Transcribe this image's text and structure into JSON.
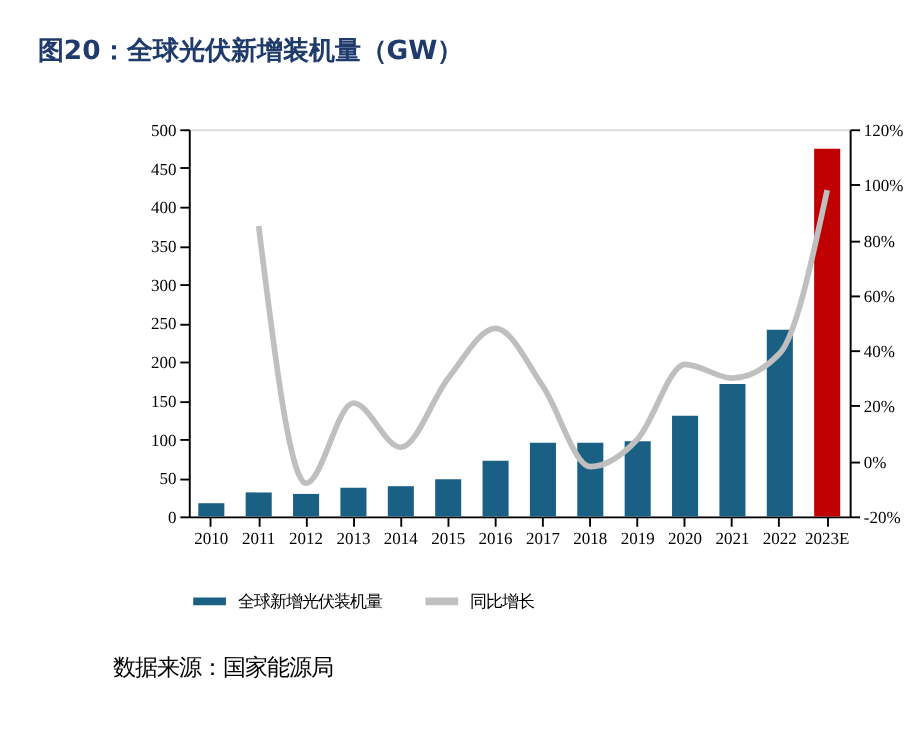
{
  "chart_data": {
    "type": "bar",
    "title": "图20：全球光伏新增装机量（GW）",
    "categories": [
      "2010",
      "2011",
      "2012",
      "2013",
      "2014",
      "2015",
      "2016",
      "2017",
      "2018",
      "2019",
      "2020",
      "2021",
      "2022",
      "2023E"
    ],
    "series": [
      {
        "name": "全球新增光伏装机量",
        "color": "#1a5f84",
        "colors": [
          "#1a5f84",
          "#1a5f84",
          "#1a5f84",
          "#1a5f84",
          "#1a5f84",
          "#1a5f84",
          "#1a5f84",
          "#1a5f84",
          "#1a5f84",
          "#1a5f84",
          "#1a5f84",
          "#1a5f84",
          "#1a5f84",
          "#c00000"
        ],
        "values": [
          17,
          31,
          29,
          37,
          39,
          48,
          72,
          95,
          95,
          97,
          130,
          171,
          241,
          475
        ]
      },
      {
        "name": "同比增长",
        "type": "line",
        "axis": "y2",
        "color": "#bfbfbf",
        "values": [
          null,
          85,
          -8,
          21,
          5,
          30,
          48,
          27,
          -2,
          8,
          35,
          30,
          39,
          98
        ]
      }
    ],
    "ylim": [
      0,
      500
    ],
    "yticks": [
      0,
      50,
      100,
      150,
      200,
      250,
      300,
      350,
      400,
      450,
      500
    ],
    "y2lim": [
      -20,
      120
    ],
    "y2ticks": [
      {
        "value": -20,
        "label": "-20%"
      },
      {
        "value": 0,
        "label": "0%"
      },
      {
        "value": 20,
        "label": "20%"
      },
      {
        "value": 40,
        "label": "40%"
      },
      {
        "value": 60,
        "label": "60%"
      },
      {
        "value": 80,
        "label": "80%"
      },
      {
        "value": 100,
        "label": "100%"
      },
      {
        "value": 120,
        "label": "120%"
      }
    ],
    "grid": false,
    "legend": "bottom",
    "line_style": "solid",
    "marker": "none",
    "annotations": [
      "数据来源：国家能源局"
    ]
  }
}
